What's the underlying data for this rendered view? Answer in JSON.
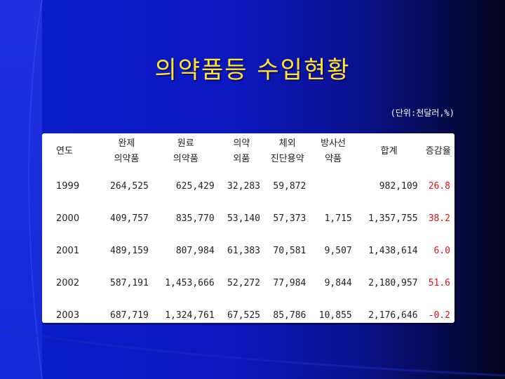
{
  "slide": {
    "title": "의약품등 수입현황",
    "unit_note": "(단위:천달러,%)"
  },
  "table": {
    "headers": [
      {
        "line1": "연도",
        "line2": ""
      },
      {
        "line1": "완제",
        "line2": "의약품"
      },
      {
        "line1": "원료",
        "line2": "의약품"
      },
      {
        "line1": "의약",
        "line2": "외품"
      },
      {
        "line1": "체외",
        "line2": "진단용약"
      },
      {
        "line1": "방사선",
        "line2": "약품"
      },
      {
        "line1": "합계",
        "line2": ""
      },
      {
        "line1": "증감율",
        "line2": ""
      }
    ],
    "rows": [
      {
        "year": "1999",
        "finished": "264,525",
        "raw": "625,429",
        "quasi": "32,283",
        "diag": "59,872",
        "radio": "",
        "total": "982,109",
        "rate": "26.8"
      },
      {
        "year": "2000",
        "finished": "409,757",
        "raw": "835,770",
        "quasi": "53,140",
        "diag": "57,373",
        "radio": "1,715",
        "total": "1,357,755",
        "rate": "38.2"
      },
      {
        "year": "2001",
        "finished": "489,159",
        "raw": "807,984",
        "quasi": "61,383",
        "diag": "70,581",
        "radio": "9,507",
        "total": "1,438,614",
        "rate": "6.0"
      },
      {
        "year": "2002",
        "finished": "587,191",
        "raw": "1,453,666",
        "quasi": "52,272",
        "diag": "77,984",
        "radio": "9,844",
        "total": "2,180,957",
        "rate": "51.6"
      },
      {
        "year": "2003",
        "finished": "687,719",
        "raw": "1,324,761",
        "quasi": "67,525",
        "diag": "85,786",
        "radio": "10,855",
        "total": "2,176,646",
        "rate": "-0.2"
      }
    ]
  },
  "colors": {
    "title": "#ffe23a",
    "rate_text": "#e0111a",
    "background": "#0b18c0",
    "accent_bar": "#2030e0"
  }
}
